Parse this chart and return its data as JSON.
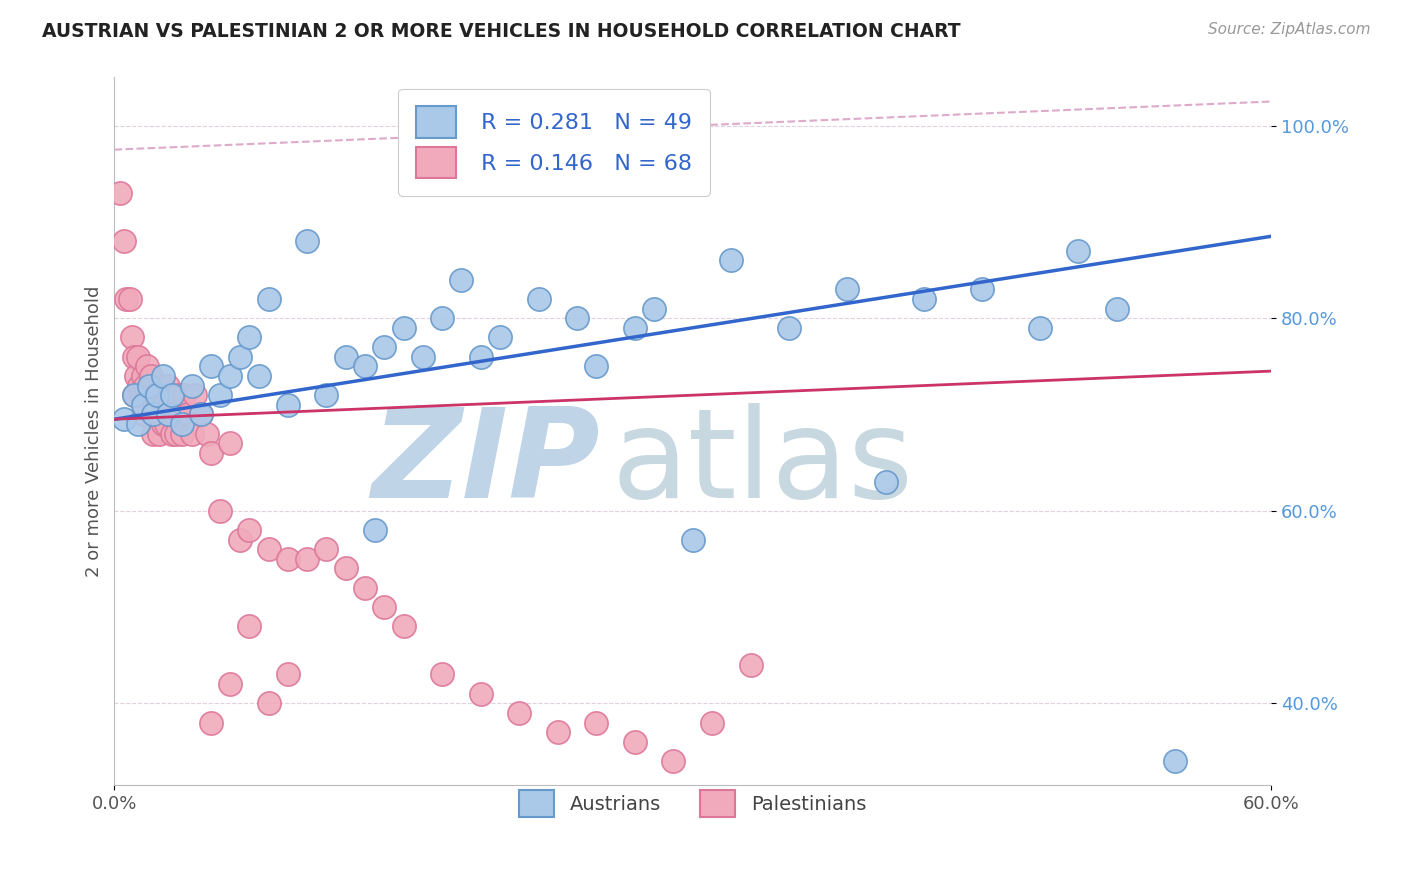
{
  "title": "AUSTRIAN VS PALESTINIAN 2 OR MORE VEHICLES IN HOUSEHOLD CORRELATION CHART",
  "source": "Source: ZipAtlas.com",
  "ylabel": "2 or more Vehicles in Household",
  "xlim": [
    0.0,
    0.6
  ],
  "ylim": [
    0.315,
    1.05
  ],
  "y_ticks": [
    0.4,
    0.6,
    0.8,
    1.0
  ],
  "y_tick_labels": [
    "40.0%",
    "60.0%",
    "80.0%",
    "100.0%"
  ],
  "x_ticks": [
    0.0,
    0.6
  ],
  "x_tick_labels": [
    "0.0%",
    "60.0%"
  ],
  "legend_R_austrians": "R = 0.281",
  "legend_N_austrians": "N = 49",
  "legend_R_palestinians": "R = 0.146",
  "legend_N_palestinians": "N = 68",
  "legend_label_austrians": "Austrians",
  "legend_label_palestinians": "Palestinians",
  "austrians_color": "#aac8e8",
  "palestinians_color": "#f0aabb",
  "austrians_edge_color": "#6699cc",
  "palestinians_edge_color": "#dd7799",
  "line_austrians_color": "#3366cc",
  "line_palestinians_color": "#cc3366",
  "ref_line_color": "#ddaacc",
  "watermark_zip_color": "#c0d4e8",
  "watermark_atlas_color": "#c8d8e0",
  "background_color": "#ffffff",
  "grid_color": "#e0d0e0",
  "aus_line_x0": 0.0,
  "aus_line_y0": 0.695,
  "aus_line_x1": 0.6,
  "aus_line_y1": 0.885,
  "pal_line_x0": 0.0,
  "pal_line_y0": 0.695,
  "pal_line_x1": 0.6,
  "pal_line_y1": 0.745,
  "ref_line_x0": 0.0,
  "ref_line_y0": 0.975,
  "ref_line_x1": 0.6,
  "ref_line_y1": 1.025,
  "austrians_x": [
    0.005,
    0.01,
    0.012,
    0.015,
    0.018,
    0.02,
    0.022,
    0.025,
    0.028,
    0.03,
    0.035,
    0.04,
    0.045,
    0.05,
    0.055,
    0.06,
    0.065,
    0.07,
    0.075,
    0.08,
    0.09,
    0.1,
    0.11,
    0.12,
    0.13,
    0.135,
    0.14,
    0.15,
    0.16,
    0.17,
    0.18,
    0.19,
    0.2,
    0.22,
    0.24,
    0.25,
    0.27,
    0.28,
    0.3,
    0.32,
    0.35,
    0.38,
    0.4,
    0.42,
    0.45,
    0.48,
    0.5,
    0.52,
    0.55
  ],
  "austrians_y": [
    0.695,
    0.72,
    0.69,
    0.71,
    0.73,
    0.7,
    0.72,
    0.74,
    0.7,
    0.72,
    0.69,
    0.73,
    0.7,
    0.75,
    0.72,
    0.74,
    0.76,
    0.78,
    0.74,
    0.82,
    0.71,
    0.88,
    0.72,
    0.76,
    0.75,
    0.58,
    0.77,
    0.79,
    0.76,
    0.8,
    0.84,
    0.76,
    0.78,
    0.82,
    0.8,
    0.75,
    0.79,
    0.81,
    0.57,
    0.86,
    0.79,
    0.83,
    0.63,
    0.82,
    0.83,
    0.79,
    0.87,
    0.81,
    0.34
  ],
  "palestinians_x": [
    0.003,
    0.005,
    0.006,
    0.008,
    0.009,
    0.01,
    0.01,
    0.011,
    0.012,
    0.013,
    0.014,
    0.015,
    0.015,
    0.016,
    0.017,
    0.018,
    0.019,
    0.02,
    0.02,
    0.021,
    0.022,
    0.023,
    0.024,
    0.025,
    0.025,
    0.026,
    0.027,
    0.028,
    0.029,
    0.03,
    0.031,
    0.032,
    0.033,
    0.034,
    0.035,
    0.036,
    0.038,
    0.04,
    0.042,
    0.045,
    0.048,
    0.05,
    0.055,
    0.06,
    0.065,
    0.07,
    0.08,
    0.09,
    0.1,
    0.11,
    0.12,
    0.13,
    0.14,
    0.15,
    0.17,
    0.19,
    0.21,
    0.23,
    0.25,
    0.27,
    0.29,
    0.31,
    0.33,
    0.05,
    0.06,
    0.07,
    0.08,
    0.09
  ],
  "palestinians_y": [
    0.93,
    0.88,
    0.82,
    0.82,
    0.78,
    0.76,
    0.72,
    0.74,
    0.76,
    0.73,
    0.72,
    0.74,
    0.7,
    0.73,
    0.75,
    0.72,
    0.74,
    0.7,
    0.68,
    0.72,
    0.7,
    0.68,
    0.72,
    0.69,
    0.73,
    0.71,
    0.69,
    0.73,
    0.71,
    0.68,
    0.7,
    0.68,
    0.72,
    0.7,
    0.68,
    0.72,
    0.7,
    0.68,
    0.72,
    0.7,
    0.68,
    0.66,
    0.6,
    0.67,
    0.57,
    0.58,
    0.56,
    0.55,
    0.55,
    0.56,
    0.54,
    0.52,
    0.5,
    0.48,
    0.43,
    0.41,
    0.39,
    0.37,
    0.38,
    0.36,
    0.34,
    0.38,
    0.44,
    0.38,
    0.42,
    0.48,
    0.4,
    0.43
  ]
}
